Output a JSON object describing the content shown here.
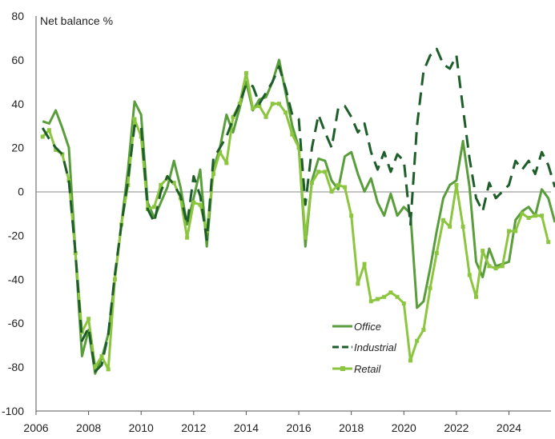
{
  "chart_data": {
    "type": "line",
    "title": "",
    "ylabel": "Net balance %",
    "xlabel": "",
    "ylim": [
      -100,
      80
    ],
    "xlim": [
      2006,
      2025.6
    ],
    "yticks": [
      80,
      60,
      40,
      20,
      0,
      -20,
      -40,
      -60,
      -80,
      -100
    ],
    "xticks": [
      2006,
      2008,
      2010,
      2012,
      2014,
      2016,
      2018,
      2020,
      2022,
      2024
    ],
    "legend_position": "bottom-right",
    "series": [
      {
        "name": "Office",
        "color": "#5a9e3c",
        "style": "solid",
        "points": [
          [
            2006.25,
            32
          ],
          [
            2006.5,
            31
          ],
          [
            2006.75,
            37
          ],
          [
            2007.0,
            29
          ],
          [
            2007.25,
            20
          ],
          [
            2007.5,
            -28
          ],
          [
            2007.75,
            -75
          ],
          [
            2008.0,
            -63
          ],
          [
            2008.25,
            -83
          ],
          [
            2008.5,
            -76
          ],
          [
            2008.75,
            -65
          ],
          [
            2009.0,
            -40
          ],
          [
            2009.25,
            -15
          ],
          [
            2009.5,
            10
          ],
          [
            2009.75,
            41
          ],
          [
            2010.0,
            35
          ],
          [
            2010.25,
            -5
          ],
          [
            2010.5,
            -12
          ],
          [
            2010.75,
            -5
          ],
          [
            2011.0,
            2
          ],
          [
            2011.25,
            14
          ],
          [
            2011.5,
            2
          ],
          [
            2011.75,
            -15
          ],
          [
            2012.0,
            -3
          ],
          [
            2012.25,
            10
          ],
          [
            2012.5,
            -25
          ],
          [
            2012.75,
            10
          ],
          [
            2013.0,
            20
          ],
          [
            2013.25,
            35
          ],
          [
            2013.5,
            27
          ],
          [
            2013.75,
            38
          ],
          [
            2014.0,
            50
          ],
          [
            2014.25,
            37
          ],
          [
            2014.5,
            42
          ],
          [
            2014.75,
            43
          ],
          [
            2015.0,
            50
          ],
          [
            2015.25,
            60
          ],
          [
            2015.5,
            45
          ],
          [
            2015.75,
            30
          ],
          [
            2016.0,
            20
          ],
          [
            2016.25,
            -25
          ],
          [
            2016.5,
            5
          ],
          [
            2016.75,
            15
          ],
          [
            2017.0,
            14
          ],
          [
            2017.25,
            5
          ],
          [
            2017.5,
            1
          ],
          [
            2017.75,
            16
          ],
          [
            2018.0,
            18
          ],
          [
            2018.25,
            8
          ],
          [
            2018.5,
            0
          ],
          [
            2018.75,
            6
          ],
          [
            2019.0,
            -5
          ],
          [
            2019.25,
            -11
          ],
          [
            2019.5,
            -1
          ],
          [
            2019.75,
            -11
          ],
          [
            2020.0,
            -7
          ],
          [
            2020.25,
            -10
          ],
          [
            2020.5,
            -53
          ],
          [
            2020.75,
            -50
          ],
          [
            2021.0,
            -35
          ],
          [
            2021.25,
            -18
          ],
          [
            2021.5,
            -3
          ],
          [
            2021.75,
            3
          ],
          [
            2022.0,
            5
          ],
          [
            2022.25,
            23
          ],
          [
            2022.5,
            2
          ],
          [
            2022.75,
            -32
          ],
          [
            2023.0,
            -39
          ],
          [
            2023.25,
            -26
          ],
          [
            2023.5,
            -34
          ],
          [
            2023.75,
            -33
          ],
          [
            2024.0,
            -32
          ],
          [
            2024.25,
            -13
          ],
          [
            2024.5,
            -9
          ],
          [
            2024.75,
            -7
          ],
          [
            2025.0,
            -11
          ],
          [
            2025.25,
            1
          ],
          [
            2025.5,
            -3
          ],
          [
            2025.75,
            -14
          ]
        ]
      },
      {
        "name": "Industrial",
        "color": "#1e5e2a",
        "style": "dashed",
        "points": [
          [
            2006.25,
            29
          ],
          [
            2006.5,
            24
          ],
          [
            2006.75,
            20
          ],
          [
            2007.0,
            17
          ],
          [
            2007.25,
            5
          ],
          [
            2007.5,
            -28
          ],
          [
            2007.75,
            -68
          ],
          [
            2008.0,
            -62
          ],
          [
            2008.25,
            -82
          ],
          [
            2008.5,
            -79
          ],
          [
            2008.75,
            -65
          ],
          [
            2009.0,
            -38
          ],
          [
            2009.25,
            -15
          ],
          [
            2009.5,
            5
          ],
          [
            2009.75,
            30
          ],
          [
            2010.0,
            30
          ],
          [
            2010.25,
            -8
          ],
          [
            2010.5,
            -14
          ],
          [
            2010.75,
            0
          ],
          [
            2011.0,
            7
          ],
          [
            2011.25,
            3
          ],
          [
            2011.5,
            -2
          ],
          [
            2011.75,
            -15
          ],
          [
            2012.0,
            7
          ],
          [
            2012.25,
            -2
          ],
          [
            2012.5,
            -22
          ],
          [
            2012.75,
            15
          ],
          [
            2013.0,
            20
          ],
          [
            2013.25,
            25
          ],
          [
            2013.5,
            33
          ],
          [
            2013.75,
            40
          ],
          [
            2014.0,
            49
          ],
          [
            2014.25,
            48
          ],
          [
            2014.5,
            40
          ],
          [
            2014.75,
            45
          ],
          [
            2015.0,
            50
          ],
          [
            2015.25,
            57
          ],
          [
            2015.5,
            47
          ],
          [
            2015.75,
            35
          ],
          [
            2016.0,
            33
          ],
          [
            2016.25,
            -6
          ],
          [
            2016.5,
            20
          ],
          [
            2016.75,
            35
          ],
          [
            2017.0,
            27
          ],
          [
            2017.25,
            20
          ],
          [
            2017.5,
            38
          ],
          [
            2017.75,
            39
          ],
          [
            2018.0,
            34
          ],
          [
            2018.25,
            27
          ],
          [
            2018.5,
            31
          ],
          [
            2018.75,
            18
          ],
          [
            2019.0,
            10
          ],
          [
            2019.25,
            18
          ],
          [
            2019.5,
            9
          ],
          [
            2019.75,
            17
          ],
          [
            2020.0,
            14
          ],
          [
            2020.25,
            -15
          ],
          [
            2020.5,
            30
          ],
          [
            2020.75,
            55
          ],
          [
            2021.0,
            62
          ],
          [
            2021.25,
            65
          ],
          [
            2021.5,
            58
          ],
          [
            2021.75,
            56
          ],
          [
            2022.0,
            62
          ],
          [
            2022.25,
            38
          ],
          [
            2022.5,
            15
          ],
          [
            2022.75,
            -3
          ],
          [
            2023.0,
            -9
          ],
          [
            2023.25,
            4
          ],
          [
            2023.5,
            -3
          ],
          [
            2023.75,
            0
          ],
          [
            2024.0,
            3
          ],
          [
            2024.25,
            14
          ],
          [
            2024.5,
            10
          ],
          [
            2024.75,
            14
          ],
          [
            2025.0,
            8
          ],
          [
            2025.25,
            18
          ],
          [
            2025.5,
            12
          ],
          [
            2025.75,
            2
          ]
        ]
      },
      {
        "name": "Retail",
        "color": "#8cc63f",
        "style": "solid-square-markers",
        "points": [
          [
            2006.25,
            25
          ],
          [
            2006.5,
            28
          ],
          [
            2006.75,
            19
          ],
          [
            2007.0,
            17
          ],
          [
            2007.25,
            5
          ],
          [
            2007.5,
            -28
          ],
          [
            2007.75,
            -64
          ],
          [
            2008.0,
            -58
          ],
          [
            2008.25,
            -80
          ],
          [
            2008.5,
            -75
          ],
          [
            2008.75,
            -81
          ],
          [
            2009.0,
            -40
          ],
          [
            2009.25,
            -15
          ],
          [
            2009.5,
            3
          ],
          [
            2009.75,
            33
          ],
          [
            2010.0,
            25
          ],
          [
            2010.25,
            -8
          ],
          [
            2010.5,
            -7
          ],
          [
            2010.75,
            3
          ],
          [
            2011.0,
            6
          ],
          [
            2011.25,
            4
          ],
          [
            2011.5,
            -3
          ],
          [
            2011.75,
            -21
          ],
          [
            2012.0,
            -5
          ],
          [
            2012.25,
            -6
          ],
          [
            2012.5,
            -18
          ],
          [
            2012.75,
            8
          ],
          [
            2013.0,
            18
          ],
          [
            2013.25,
            13
          ],
          [
            2013.5,
            34
          ],
          [
            2013.75,
            40
          ],
          [
            2014.0,
            54
          ],
          [
            2014.25,
            38
          ],
          [
            2014.5,
            39
          ],
          [
            2014.75,
            34
          ],
          [
            2015.0,
            40
          ],
          [
            2015.25,
            40
          ],
          [
            2015.5,
            36
          ],
          [
            2015.75,
            26
          ],
          [
            2016.0,
            20
          ],
          [
            2016.25,
            -21
          ],
          [
            2016.5,
            4
          ],
          [
            2016.75,
            9
          ],
          [
            2017.0,
            9
          ],
          [
            2017.25,
            0
          ],
          [
            2017.5,
            3
          ],
          [
            2017.75,
            2
          ],
          [
            2018.0,
            -11
          ],
          [
            2018.25,
            -42
          ],
          [
            2018.5,
            -33
          ],
          [
            2018.75,
            -50
          ],
          [
            2019.0,
            -49
          ],
          [
            2019.25,
            -48
          ],
          [
            2019.5,
            -46
          ],
          [
            2019.75,
            -48
          ],
          [
            2020.0,
            -51
          ],
          [
            2020.25,
            -77
          ],
          [
            2020.5,
            -68
          ],
          [
            2020.75,
            -63
          ],
          [
            2021.0,
            -44
          ],
          [
            2021.25,
            -28
          ],
          [
            2021.5,
            -13
          ],
          [
            2021.75,
            -16
          ],
          [
            2022.0,
            3
          ],
          [
            2022.25,
            -16
          ],
          [
            2022.5,
            -38
          ],
          [
            2022.75,
            -48
          ],
          [
            2023.0,
            -27
          ],
          [
            2023.25,
            -34
          ],
          [
            2023.5,
            -35
          ],
          [
            2023.75,
            -34
          ],
          [
            2024.0,
            -18
          ],
          [
            2024.25,
            -18
          ],
          [
            2024.5,
            -10
          ],
          [
            2024.75,
            -12
          ],
          [
            2025.0,
            -11
          ],
          [
            2025.25,
            -11
          ],
          [
            2025.5,
            -23
          ]
        ]
      }
    ]
  }
}
